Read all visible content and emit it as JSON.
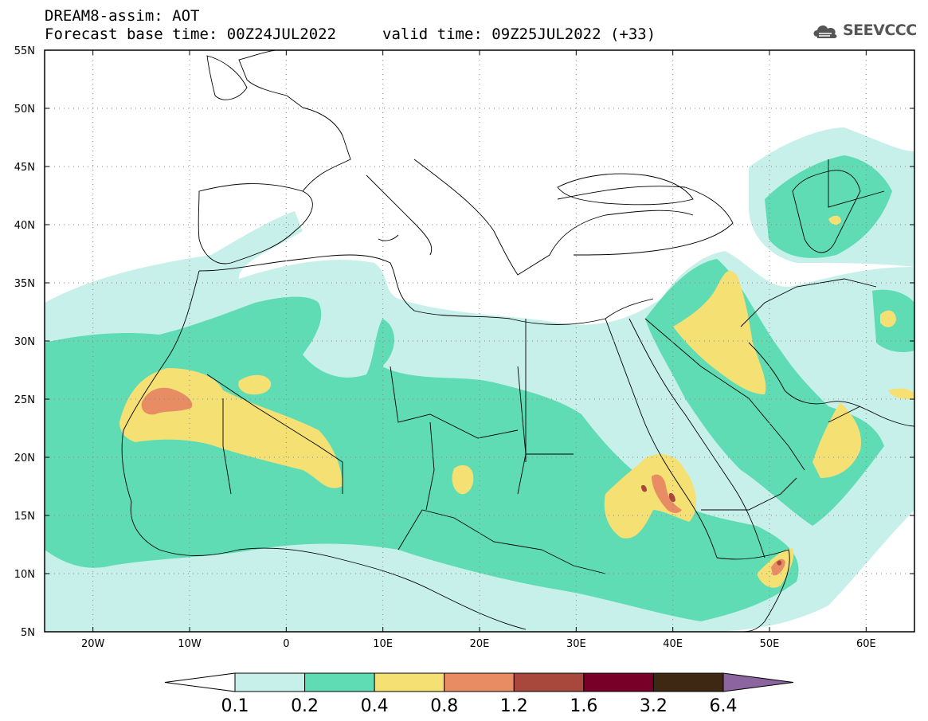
{
  "header": {
    "line1": "DREAM8-assim: AOT",
    "line2": "Forecast base time: 00Z24JUL2022",
    "line3": "valid time: 09Z25JUL2022 (+33)"
  },
  "logo": {
    "text": "SEEVCCC",
    "icon": "cloud-icon"
  },
  "map": {
    "lat_labels": [
      "55N",
      "50N",
      "45N",
      "40N",
      "35N",
      "30N",
      "25N",
      "20N",
      "15N",
      "10N",
      "5N"
    ],
    "lon_labels": [
      "20W",
      "10W",
      "0",
      "10E",
      "20E",
      "30E",
      "40E",
      "50E",
      "60E"
    ],
    "lon_range": [
      -25,
      65
    ],
    "lat_range": [
      5,
      55
    ],
    "grid": "dotted"
  },
  "legend": {
    "values": [
      "0.1",
      "0.2",
      "0.4",
      "0.8",
      "1.2",
      "1.6",
      "3.2",
      "6.4"
    ],
    "colors": [
      "#c8f0eb",
      "#5fdcb4",
      "#f5e074",
      "#e88c64",
      "#a8483c",
      "#780028",
      "#3e2814",
      "#8c64a0"
    ],
    "under_color": "#ffffff",
    "over_color": "#8c64a0"
  }
}
